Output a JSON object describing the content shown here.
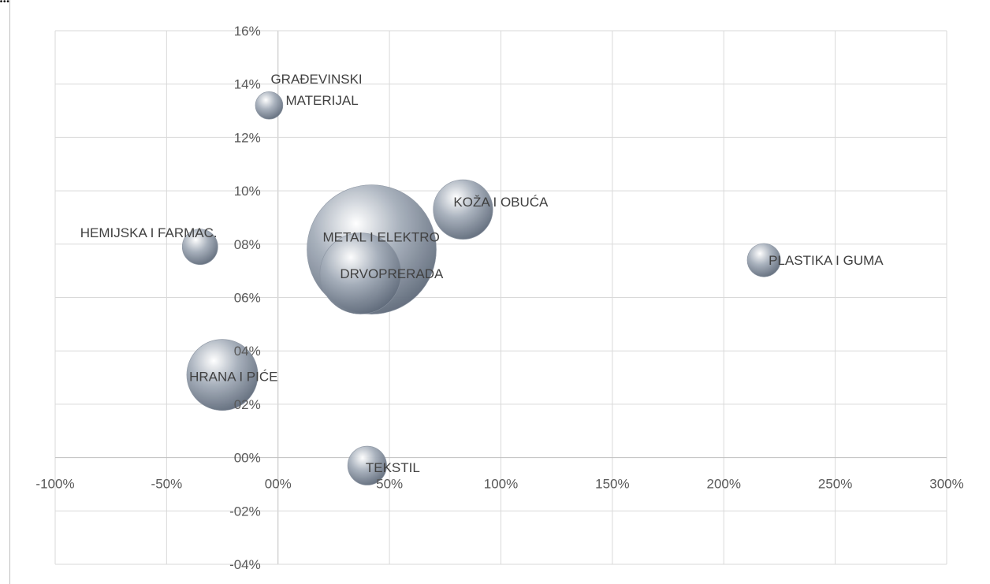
{
  "caption": "...",
  "colors": {
    "grid": "#d9d9d9",
    "axis": "#bfbfbf",
    "tick_text": "#595959",
    "label_text": "#404040",
    "bubble_light": "#ffffff",
    "bubble_mid": "#a6afbb",
    "bubble_dark": "#5d6878"
  },
  "chart_data": {
    "type": "bubble",
    "title": "",
    "xlabel": "",
    "ylabel": "",
    "xlim": [
      -1.0,
      3.0
    ],
    "ylim": [
      -0.04,
      0.16
    ],
    "x_ticks": [
      -1.0,
      -0.5,
      0.0,
      0.5,
      1.0,
      1.5,
      2.0,
      2.5,
      3.0
    ],
    "y_ticks": [
      -0.04,
      -0.02,
      0.0,
      0.02,
      0.04,
      0.06,
      0.08,
      0.1,
      0.12,
      0.14,
      0.16
    ],
    "x_tick_labels": [
      "-100%",
      "-50%",
      "00%",
      "50%",
      "100%",
      "150%",
      "200%",
      "250%",
      "300%"
    ],
    "y_tick_labels": [
      "-04%",
      "-02%",
      "00%",
      "02%",
      "04%",
      "06%",
      "08%",
      "10%",
      "12%",
      "14%",
      "16%"
    ],
    "grid": true,
    "points": [
      {
        "label": "GRAĐEVINSKI MATERIJAL",
        "x": -0.04,
        "y": 0.132,
        "size": 0.15
      },
      {
        "label": "HEMIJSKA I FARMAC.",
        "x": -0.35,
        "y": 0.079,
        "size": 0.25
      },
      {
        "label": "METAL I ELEKTRO",
        "x": 0.42,
        "y": 0.078,
        "size": 3.3
      },
      {
        "label": "DRVOPRERADA",
        "x": 0.37,
        "y": 0.069,
        "size": 1.3
      },
      {
        "label": "KOŽA I OBUĆA",
        "x": 0.83,
        "y": 0.093,
        "size": 0.7
      },
      {
        "label": "PLASTIKA I GUMA",
        "x": 2.18,
        "y": 0.074,
        "size": 0.22
      },
      {
        "label": "HRANA I PIĆE",
        "x": -0.25,
        "y": 0.031,
        "size": 1.0
      },
      {
        "label": "TEKSTIL",
        "x": 0.4,
        "y": -0.003,
        "size": 0.3
      }
    ]
  }
}
